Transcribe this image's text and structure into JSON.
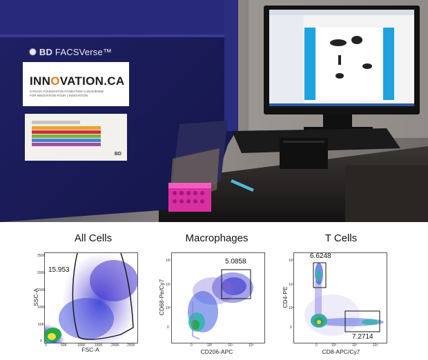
{
  "photo": {
    "instrument_brand": "BD",
    "instrument_model": "FACSVerse™",
    "label_title_a": "INN",
    "label_title_b": "O",
    "label_title_c": "VATION.CA",
    "label_sub_1": "CANADA FOUNDATION  FONDATION CANADIENNE",
    "label_sub_2": "FOR INNOVATION      POUR L'INNOVATION",
    "sticker_brand": "BD",
    "colors": {
      "instrument": "#1d1f5e",
      "label_accent": "#e87722",
      "rack": "#d92fa0",
      "monitor_screen": "#ffffff"
    }
  },
  "panels": [
    {
      "title": "All Cells",
      "x_label": "FSC-A",
      "y_label": "SSC-A",
      "gate_value": "15.953",
      "y_ticks": [
        "250K",
        "200K",
        "150K",
        "100K",
        "50K",
        "0"
      ],
      "x_ticks": [
        "0",
        "50K",
        "100K",
        "150K",
        "200K",
        "250K"
      ]
    },
    {
      "title": "Macrophages",
      "x_label": "CD206-APC",
      "y_label": "CD68-Pe/Cy7",
      "gate_value": "5.0858",
      "y_ticks": [
        "10⁵",
        "10⁴",
        "10³",
        "0"
      ],
      "x_ticks": [
        "0",
        "10³",
        "10⁴",
        "10⁵"
      ]
    },
    {
      "title": "T Cells",
      "x_label": "CD8-APC/Cy7",
      "y_label": "CD4-PE",
      "gate_value_top": "6.6248",
      "gate_value_bottom": "7.2714",
      "y_ticks": [
        "10⁵",
        "10⁴",
        "10³",
        "0"
      ],
      "x_ticks": [
        "0",
        "10³",
        "10⁴",
        "10⁵"
      ]
    }
  ]
}
